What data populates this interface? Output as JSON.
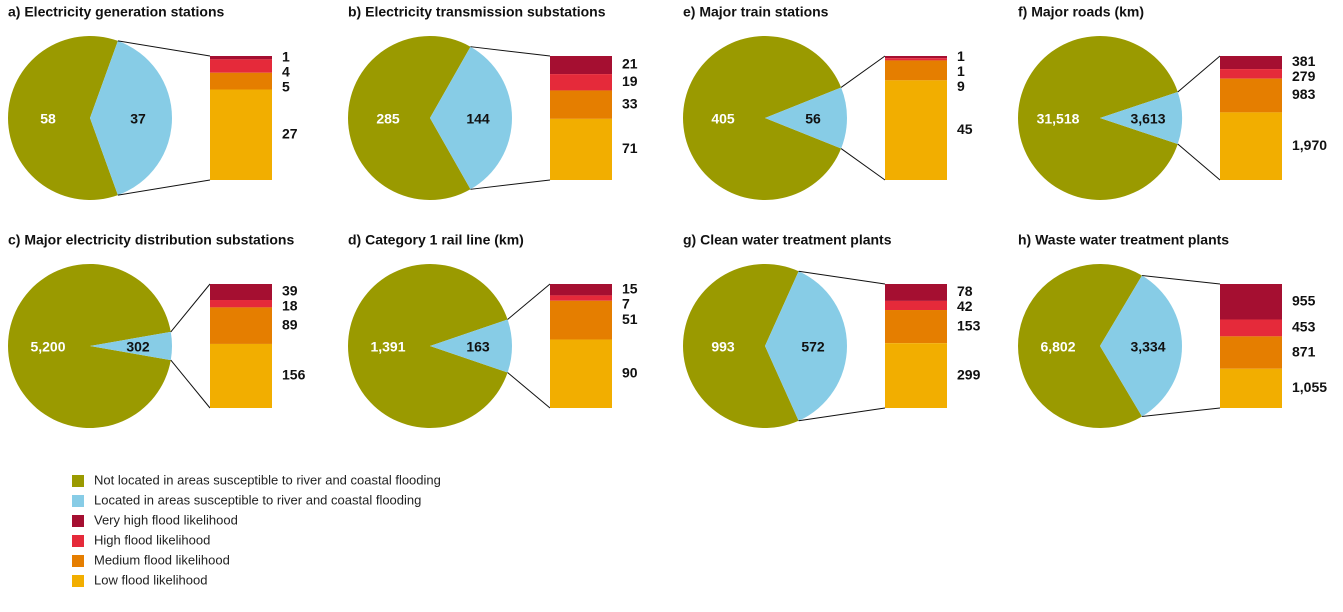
{
  "legend": [
    {
      "name": "Not located in areas susceptible to river and coastal flooding",
      "color": "#9a9a00"
    },
    {
      "name": "Located in areas susceptible to river and coastal flooding",
      "color": "#87cce6"
    },
    {
      "name": "Very high flood likelihood",
      "color": "#a50f31"
    },
    {
      "name": "High flood likelihood",
      "color": "#e52a3a"
    },
    {
      "name": "Medium flood likelihood",
      "color": "#e57e00"
    },
    {
      "name": "Low flood likelihood",
      "color": "#f2ae00"
    }
  ],
  "chart_data": [
    {
      "type": "bar-of-pie",
      "title": "a) Electricity generation stations",
      "values": [
        58,
        37
      ],
      "breakdown": [
        1,
        4,
        5,
        27
      ]
    },
    {
      "type": "bar-of-pie",
      "title": "b) Electricity transmission substations",
      "values": [
        285,
        144
      ],
      "breakdown": [
        21,
        19,
        33,
        71
      ]
    },
    {
      "type": "bar-of-pie",
      "title": "e) Major train stations",
      "values": [
        405,
        56
      ],
      "breakdown": [
        1,
        1,
        9,
        45
      ]
    },
    {
      "type": "bar-of-pie",
      "title": "f) Major roads (km)",
      "values": [
        31518,
        3613
      ],
      "value_labels": [
        "31,518",
        "3,613"
      ],
      "breakdown": [
        381,
        279,
        983,
        1970
      ],
      "breakdown_labels": [
        "381",
        "279",
        "983",
        "1,970"
      ]
    },
    {
      "type": "bar-of-pie",
      "title": "c) Major electricity distribution substations",
      "values": [
        5200,
        302
      ],
      "value_labels": [
        "5,200",
        "302"
      ],
      "breakdown": [
        39,
        18,
        89,
        156
      ]
    },
    {
      "type": "bar-of-pie",
      "title": "d) Category 1 rail line (km)",
      "values": [
        1391,
        163
      ],
      "value_labels": [
        "1,391",
        "163"
      ],
      "breakdown": [
        15,
        7,
        51,
        90
      ]
    },
    {
      "type": "bar-of-pie",
      "title": "g) Clean water treatment plants",
      "values": [
        993,
        572
      ],
      "breakdown": [
        78,
        42,
        153,
        299
      ]
    },
    {
      "type": "bar-of-pie",
      "title": "h) Waste water treatment plants",
      "values": [
        6802,
        3334
      ],
      "value_labels": [
        "6,802",
        "3,334"
      ],
      "breakdown": [
        955,
        453,
        871,
        1055
      ],
      "breakdown_labels": [
        "955",
        "453",
        "871",
        "1,055"
      ]
    }
  ]
}
